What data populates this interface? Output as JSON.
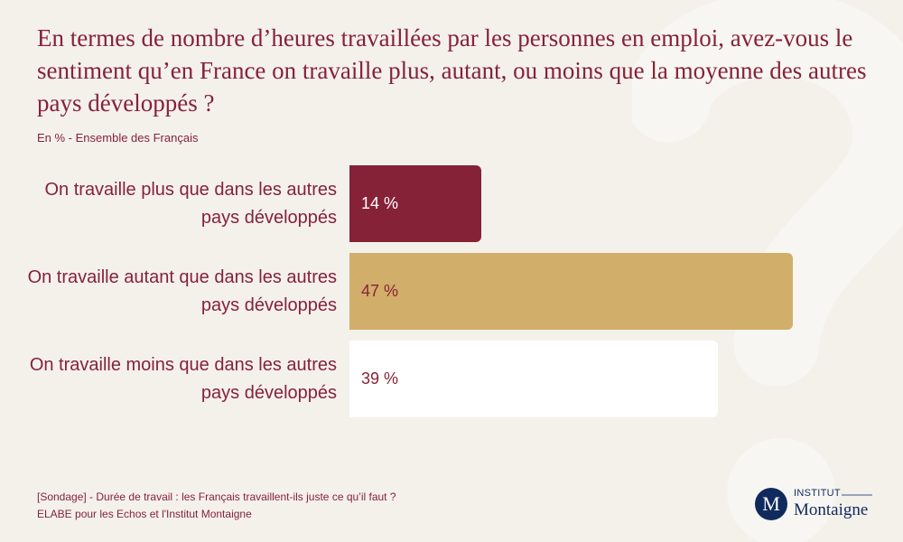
{
  "chart_data": {
    "type": "bar",
    "orientation": "horizontal",
    "title": "En termes de nombre d’heures travaillées par les personnes en emploi, avez-vous le sentiment qu’en France on travaille plus, autant, ou moins que la moyenne des autres pays développés ?",
    "subtitle": "En % - Ensemble des Français",
    "categories": [
      "On travaille plus que dans les autres pays développés",
      "On travaille autant que dans les autres pays développés",
      "On travaille moins que dans les autres pays développés"
    ],
    "values": [
      14,
      47,
      39
    ],
    "value_labels": [
      "14 %",
      "47 %",
      "39 %"
    ],
    "colors": [
      "#862238",
      "#d1ae6a",
      "#ffffff"
    ],
    "label_colors": [
      "#ffffff",
      "#862238",
      "#862238"
    ],
    "grid": false
  },
  "footer": {
    "line1": "[Sondage] - Durée de travail : les Français travaillent-ils juste ce qu’il faut ?",
    "line2": "ELABE pour les Echos et l'Institut Montaigne"
  },
  "logo": {
    "letter": "M",
    "top": "INSTITUT",
    "name": "Montaigne",
    "color": "#102a5e"
  }
}
